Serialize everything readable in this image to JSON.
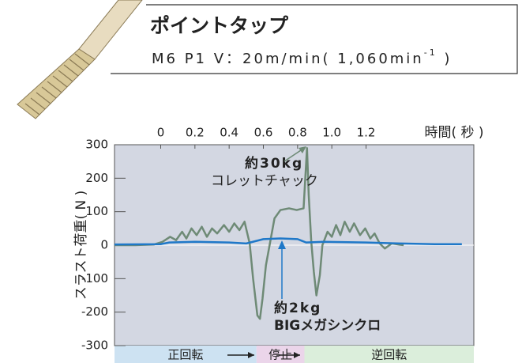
{
  "chart_data": {
    "type": "line",
    "title": "ポイントタップ",
    "subtitle": "M6 P1 V：20m/min( 1,060min",
    "subtitle_superscript": "-1",
    "subtitle_end": " )",
    "x_label": "時間( 秒 )",
    "y_label": "スラスト荷重( N )",
    "xlim": [
      -0.27,
      1.83
    ],
    "ylim": [
      -300,
      300
    ],
    "xticks": [
      0,
      0.2,
      0.4,
      0.6,
      0.8,
      {
        "value": 1,
        "label": "1.0"
      },
      1.2
    ],
    "yticks": [
      300,
      200,
      100,
      0,
      -100,
      -200,
      -300
    ],
    "background": "#d3d7e2",
    "phases": [
      {
        "label": "正回転",
        "start": -0.27,
        "end": 0.56,
        "color": "#cde2f2"
      },
      {
        "label": "停止",
        "start": 0.56,
        "end": 0.84,
        "color": "#ebd5ea"
      },
      {
        "label": "逆回転",
        "start": 0.84,
        "end": 1.83,
        "color": "#dbeedb"
      }
    ],
    "series": [
      {
        "name": "コレットチャック",
        "annotation": "約30kg",
        "color": "#6e8a76",
        "x": [
          -0.27,
          -0.15,
          -0.04,
          0.01,
          0.055,
          0.09,
          0.125,
          0.15,
          0.18,
          0.21,
          0.24,
          0.27,
          0.3,
          0.33,
          0.37,
          0.4,
          0.43,
          0.46,
          0.49,
          0.52,
          0.54,
          0.565,
          0.58,
          0.595,
          0.615,
          0.64,
          0.665,
          0.7,
          0.75,
          0.795,
          0.835,
          0.845,
          0.855,
          0.865,
          0.88,
          0.895,
          0.91,
          0.93,
          0.945,
          0.975,
          1.0,
          1.025,
          1.05,
          1.075,
          1.105,
          1.13,
          1.165,
          1.195,
          1.225,
          1.25,
          1.28,
          1.31,
          1.35,
          1.42
        ],
        "values": [
          0,
          0,
          2,
          10,
          25,
          15,
          40,
          20,
          50,
          30,
          55,
          25,
          50,
          35,
          60,
          40,
          65,
          45,
          70,
          5,
          -100,
          -210,
          -220,
          -160,
          -60,
          10,
          80,
          105,
          110,
          105,
          110,
          200,
          290,
          150,
          10,
          -80,
          -150,
          -90,
          0,
          40,
          25,
          60,
          30,
          70,
          40,
          65,
          30,
          50,
          20,
          35,
          5,
          -10,
          5,
          0
        ]
      },
      {
        "name": "BIGメガシンクロ",
        "annotation": "約2kg",
        "color": "#1f78c8",
        "x": [
          -0.27,
          0,
          0.05,
          0.2,
          0.4,
          0.5,
          0.6,
          0.7,
          0.8,
          0.85,
          0.95,
          1.2,
          1.4,
          1.6,
          1.76
        ],
        "values": [
          2,
          3,
          8,
          10,
          8,
          5,
          18,
          20,
          18,
          8,
          10,
          8,
          5,
          3,
          3
        ]
      }
    ]
  }
}
